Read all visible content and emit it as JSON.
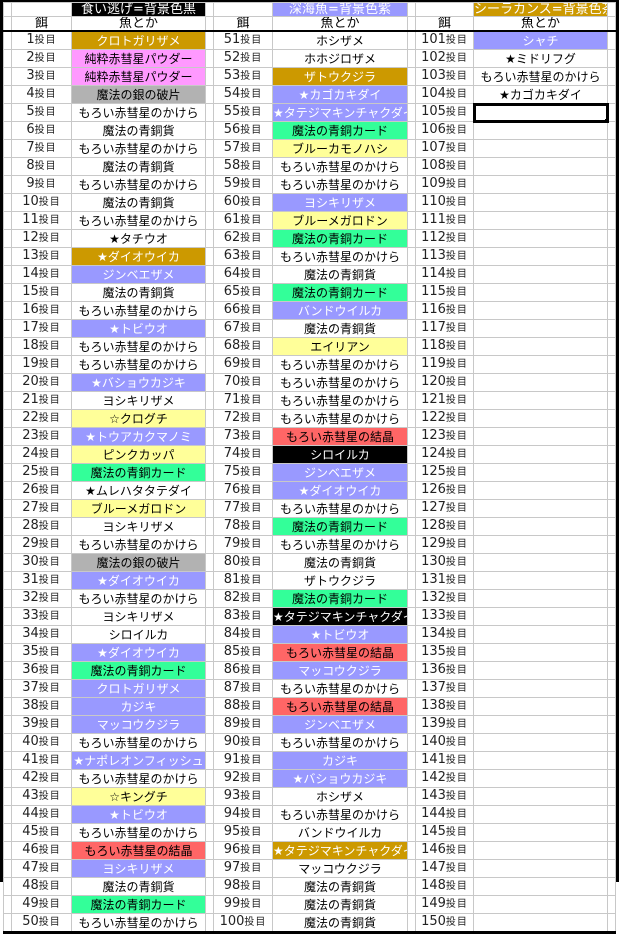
{
  "headers": [
    {
      "title": "食い逃げ=背景色黒",
      "bg": "#000000",
      "fg": "#ffffff"
    },
    {
      "title": "深海魚=背景色紫",
      "bg": "#9999FF",
      "fg": "#ffffff"
    },
    {
      "title": "シーラカンス=背景色茶",
      "bg": "#CC9900",
      "fg": "#ffffff"
    }
  ],
  "col_headers": {
    "bait": "餌",
    "fish": "魚とか"
  },
  "label_suffix": "投目",
  "selected_cell": 105,
  "palette": {
    "white": {
      "bg": "#FFFFFF",
      "fg": "#000000"
    },
    "gold": {
      "bg": "#CC9900",
      "fg": "#FFFFFF"
    },
    "pink": {
      "bg": "#FF99FF",
      "fg": "#000000"
    },
    "gray": {
      "bg": "#B2B2B2",
      "fg": "#000000"
    },
    "purple": {
      "bg": "#9999FF",
      "fg": "#FFFFFF"
    },
    "yellow": {
      "bg": "#FFFF99",
      "fg": "#000000"
    },
    "green": {
      "bg": "#33FF99",
      "fg": "#000000"
    },
    "red": {
      "bg": "#FF6666",
      "fg": "#000000"
    },
    "black": {
      "bg": "#000000",
      "fg": "#FFFFFF"
    }
  },
  "rows": [
    {
      "num": 1,
      "fish": "クロトガリザメ",
      "color": "gold"
    },
    {
      "num": 2,
      "fish": "純粋赤彗星パウダー",
      "color": "pink"
    },
    {
      "num": 3,
      "fish": "純粋赤彗星パウダー",
      "color": "pink"
    },
    {
      "num": 4,
      "fish": "魔法の銀の破片",
      "color": "gray"
    },
    {
      "num": 5,
      "fish": "もろい赤彗星のかけら",
      "color": "white"
    },
    {
      "num": 6,
      "fish": "魔法の青銅貨",
      "color": "white"
    },
    {
      "num": 7,
      "fish": "もろい赤彗星のかけら",
      "color": "white"
    },
    {
      "num": 8,
      "fish": "魔法の青銅貨",
      "color": "white"
    },
    {
      "num": 9,
      "fish": "もろい赤彗星のかけら",
      "color": "white"
    },
    {
      "num": 10,
      "fish": "魔法の青銅貨",
      "color": "white"
    },
    {
      "num": 11,
      "fish": "もろい赤彗星のかけら",
      "color": "white"
    },
    {
      "num": 12,
      "fish": "★タチウオ",
      "color": "white"
    },
    {
      "num": 13,
      "fish": "★ダイオウイカ",
      "color": "gold"
    },
    {
      "num": 14,
      "fish": "ジンベエザメ",
      "color": "purple"
    },
    {
      "num": 15,
      "fish": "魔法の青銅貨",
      "color": "white"
    },
    {
      "num": 16,
      "fish": "もろい赤彗星のかけら",
      "color": "white"
    },
    {
      "num": 17,
      "fish": "★トビウオ",
      "color": "purple"
    },
    {
      "num": 18,
      "fish": "もろい赤彗星のかけら",
      "color": "white"
    },
    {
      "num": 19,
      "fish": "もろい赤彗星のかけら",
      "color": "white"
    },
    {
      "num": 20,
      "fish": "★バショウカジキ",
      "color": "purple"
    },
    {
      "num": 21,
      "fish": "ヨシキリザメ",
      "color": "white"
    },
    {
      "num": 22,
      "fish": "☆クログチ",
      "color": "yellow"
    },
    {
      "num": 23,
      "fish": "★トウアカクマノミ",
      "color": "purple"
    },
    {
      "num": 24,
      "fish": "ピンクカッパ",
      "color": "yellow"
    },
    {
      "num": 25,
      "fish": "魔法の青銅カード",
      "color": "green"
    },
    {
      "num": 26,
      "fish": "★ムレハタタテダイ",
      "color": "white"
    },
    {
      "num": 27,
      "fish": "ブルーメガロドン",
      "color": "yellow"
    },
    {
      "num": 28,
      "fish": "ヨシキリザメ",
      "color": "white"
    },
    {
      "num": 29,
      "fish": "もろい赤彗星のかけら",
      "color": "white"
    },
    {
      "num": 30,
      "fish": "魔法の銀の破片",
      "color": "gray"
    },
    {
      "num": 31,
      "fish": "★ダイオウイカ",
      "color": "purple"
    },
    {
      "num": 32,
      "fish": "もろい赤彗星のかけら",
      "color": "white"
    },
    {
      "num": 33,
      "fish": "ヨシキリザメ",
      "color": "white"
    },
    {
      "num": 34,
      "fish": "シロイルカ",
      "color": "white"
    },
    {
      "num": 35,
      "fish": "★ダイオウイカ",
      "color": "purple"
    },
    {
      "num": 36,
      "fish": "魔法の青銅カード",
      "color": "green"
    },
    {
      "num": 37,
      "fish": "クロトガリザメ",
      "color": "purple"
    },
    {
      "num": 38,
      "fish": "カジキ",
      "color": "purple"
    },
    {
      "num": 39,
      "fish": "マッコウクジラ",
      "color": "purple"
    },
    {
      "num": 40,
      "fish": "もろい赤彗星のかけら",
      "color": "white"
    },
    {
      "num": 41,
      "fish": "★ナポレオンフィッシュ",
      "color": "purple"
    },
    {
      "num": 42,
      "fish": "もろい赤彗星のかけら",
      "color": "white"
    },
    {
      "num": 43,
      "fish": "☆キングチ",
      "color": "yellow"
    },
    {
      "num": 44,
      "fish": "★トビウオ",
      "color": "purple"
    },
    {
      "num": 45,
      "fish": "もろい赤彗星のかけら",
      "color": "white"
    },
    {
      "num": 46,
      "fish": "もろい赤彗星の結晶",
      "color": "red"
    },
    {
      "num": 47,
      "fish": "ヨシキリザメ",
      "color": "purple"
    },
    {
      "num": 48,
      "fish": "魔法の青銅貨",
      "color": "white"
    },
    {
      "num": 49,
      "fish": "魔法の青銅カード",
      "color": "green"
    },
    {
      "num": 50,
      "fish": "もろい赤彗星のかけら",
      "color": "white"
    },
    {
      "num": 51,
      "fish": "ホシザメ",
      "color": "white"
    },
    {
      "num": 52,
      "fish": "ホホジロザメ",
      "color": "white"
    },
    {
      "num": 53,
      "fish": "ザトウクジラ",
      "color": "gold"
    },
    {
      "num": 54,
      "fish": "★カゴカキダイ",
      "color": "purple"
    },
    {
      "num": 55,
      "fish": "★タテジマキンチャクダイ",
      "color": "purple"
    },
    {
      "num": 56,
      "fish": "魔法の青銅カード",
      "color": "green"
    },
    {
      "num": 57,
      "fish": "ブルーカモノハシ",
      "color": "yellow"
    },
    {
      "num": 58,
      "fish": "もろい赤彗星のかけら",
      "color": "white"
    },
    {
      "num": 59,
      "fish": "もろい赤彗星のかけら",
      "color": "white"
    },
    {
      "num": 60,
      "fish": "ヨシキリザメ",
      "color": "purple"
    },
    {
      "num": 61,
      "fish": "ブルーメガロドン",
      "color": "yellow"
    },
    {
      "num": 62,
      "fish": "魔法の青銅カード",
      "color": "green"
    },
    {
      "num": 63,
      "fish": "もろい赤彗星のかけら",
      "color": "white"
    },
    {
      "num": 64,
      "fish": "魔法の青銅貨",
      "color": "white"
    },
    {
      "num": 65,
      "fish": "魔法の青銅カード",
      "color": "green"
    },
    {
      "num": 66,
      "fish": "バンドウイルカ",
      "color": "purple"
    },
    {
      "num": 67,
      "fish": "魔法の青銅貨",
      "color": "white"
    },
    {
      "num": 68,
      "fish": "エイリアン",
      "color": "yellow"
    },
    {
      "num": 69,
      "fish": "もろい赤彗星のかけら",
      "color": "white"
    },
    {
      "num": 70,
      "fish": "もろい赤彗星のかけら",
      "color": "white"
    },
    {
      "num": 71,
      "fish": "もろい赤彗星のかけら",
      "color": "white"
    },
    {
      "num": 72,
      "fish": "もろい赤彗星のかけら",
      "color": "white"
    },
    {
      "num": 73,
      "fish": "もろい赤彗星の結晶",
      "color": "red"
    },
    {
      "num": 74,
      "fish": "シロイルカ",
      "color": "black"
    },
    {
      "num": 75,
      "fish": "ジンベエザメ",
      "color": "purple"
    },
    {
      "num": 76,
      "fish": "★ダイオウイカ",
      "color": "purple"
    },
    {
      "num": 77,
      "fish": "もろい赤彗星のかけら",
      "color": "white"
    },
    {
      "num": 78,
      "fish": "魔法の青銅カード",
      "color": "green"
    },
    {
      "num": 79,
      "fish": "もろい赤彗星のかけら",
      "color": "white"
    },
    {
      "num": 80,
      "fish": "魔法の青銅貨",
      "color": "white"
    },
    {
      "num": 81,
      "fish": "ザトウクジラ",
      "color": "white"
    },
    {
      "num": 82,
      "fish": "魔法の青銅カード",
      "color": "green"
    },
    {
      "num": 83,
      "fish": "★タテジマキンチャクダイ",
      "color": "black"
    },
    {
      "num": 84,
      "fish": "★トビウオ",
      "color": "purple"
    },
    {
      "num": 85,
      "fish": "もろい赤彗星の結晶",
      "color": "red"
    },
    {
      "num": 86,
      "fish": "マッコウクジラ",
      "color": "purple"
    },
    {
      "num": 87,
      "fish": "もろい赤彗星のかけら",
      "color": "white"
    },
    {
      "num": 88,
      "fish": "もろい赤彗星の結晶",
      "color": "red"
    },
    {
      "num": 89,
      "fish": "ジンベエザメ",
      "color": "purple"
    },
    {
      "num": 90,
      "fish": "もろい赤彗星のかけら",
      "color": "white"
    },
    {
      "num": 91,
      "fish": "カジキ",
      "color": "purple"
    },
    {
      "num": 92,
      "fish": "★バショウカジキ",
      "color": "purple"
    },
    {
      "num": 93,
      "fish": "ホシザメ",
      "color": "white"
    },
    {
      "num": 94,
      "fish": "もろい赤彗星のかけら",
      "color": "white"
    },
    {
      "num": 95,
      "fish": "バンドウイルカ",
      "color": "white"
    },
    {
      "num": 96,
      "fish": "★タテジマキンチャクダイ",
      "color": "gold"
    },
    {
      "num": 97,
      "fish": "マッコウクジラ",
      "color": "white"
    },
    {
      "num": 98,
      "fish": "魔法の青銅貨",
      "color": "white"
    },
    {
      "num": 99,
      "fish": "魔法の青銅貨",
      "color": "white"
    },
    {
      "num": 100,
      "fish": "魔法の青銅貨",
      "color": "white"
    },
    {
      "num": 101,
      "fish": "シャチ",
      "color": "purple"
    },
    {
      "num": 102,
      "fish": "★ミドリフグ",
      "color": "white"
    },
    {
      "num": 103,
      "fish": "もろい赤彗星のかけら",
      "color": "white"
    },
    {
      "num": 104,
      "fish": "★カゴカキダイ",
      "color": "white"
    }
  ]
}
